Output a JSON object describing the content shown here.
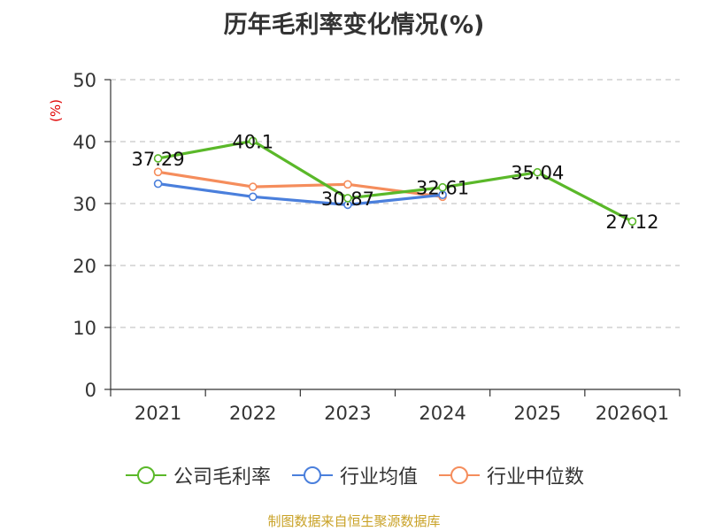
{
  "chart_data": {
    "type": "line",
    "title": "历年毛利率变化情况(%)",
    "ylabel": "(%)",
    "xlabel": "",
    "categories": [
      "2021",
      "2022",
      "2023",
      "2024",
      "2025",
      "2026Q1"
    ],
    "ylim": [
      0,
      50
    ],
    "yticks": [
      0,
      10,
      20,
      30,
      40,
      50
    ],
    "grid": true,
    "legend_position": "bottom",
    "series": [
      {
        "name": "公司毛利率",
        "color": "#5ab829",
        "values": [
          37.29,
          40.1,
          30.87,
          32.61,
          35.04,
          27.12
        ],
        "labels": [
          "37.29",
          "40.1",
          "30.87",
          "32.61",
          "35.04",
          "27.12"
        ]
      },
      {
        "name": "行业均值",
        "color": "#4a7fdc",
        "values": [
          33.2,
          31.1,
          29.8,
          31.4,
          null,
          null
        ]
      },
      {
        "name": "行业中位数",
        "color": "#f58d5c",
        "values": [
          35.1,
          32.7,
          33.1,
          31.1,
          null,
          null
        ]
      }
    ]
  },
  "source": "制图数据来自恒生聚源数据库"
}
